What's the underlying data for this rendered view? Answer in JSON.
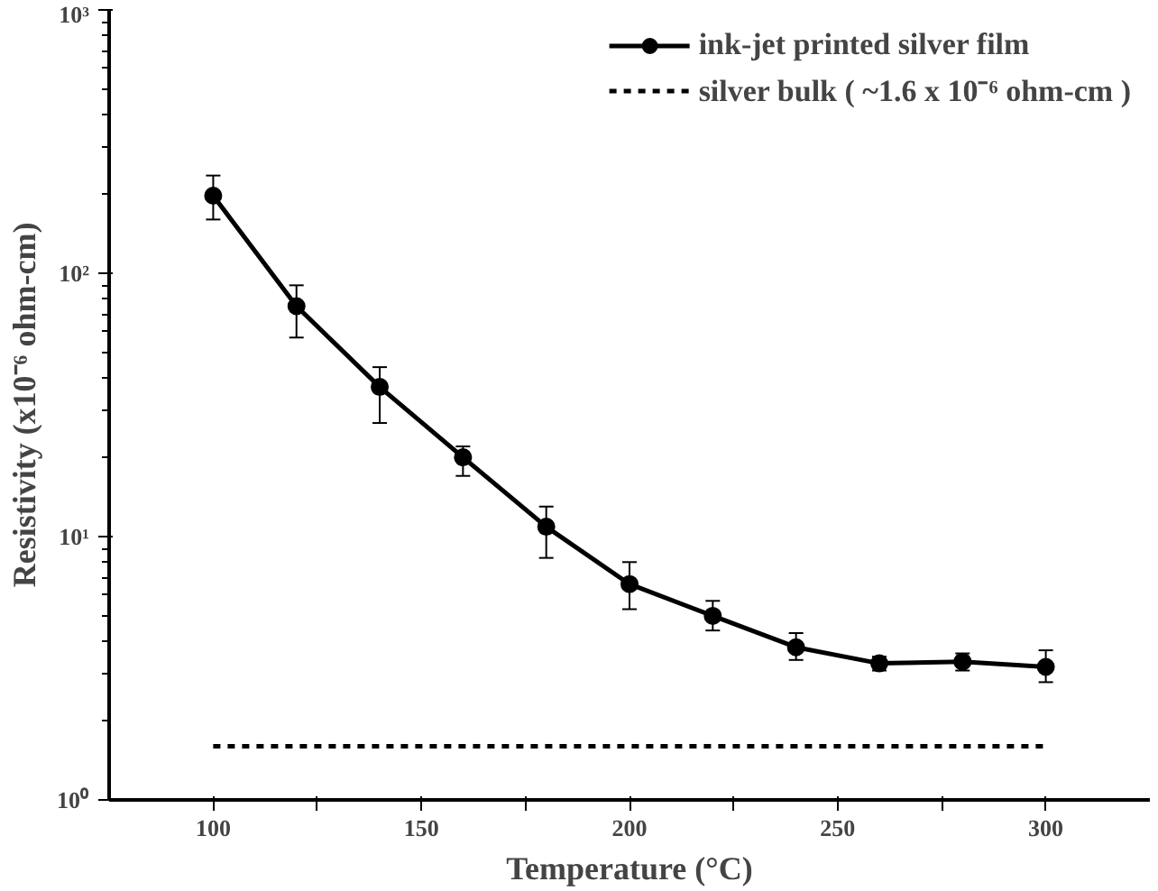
{
  "chart_data": {
    "type": "line",
    "xlabel": "Temperature (°C)",
    "ylabel": "Resistivity (x10⁻⁶ ohm-cm)",
    "log": "y",
    "xlim": [
      75,
      325
    ],
    "xticks": [
      100,
      {
        "value": 125,
        "label": null
      },
      150,
      {
        "value": 175,
        "label": null
      },
      200,
      {
        "value": 225,
        "label": null
      },
      250,
      {
        "value": 275,
        "label": null
      },
      300
    ],
    "ylim": [
      1,
      1000
    ],
    "yticks": [
      {
        "value": 1,
        "label": "10⁰"
      },
      {
        "value": 10,
        "label": "10¹"
      },
      {
        "value": 100,
        "label": "10²"
      },
      {
        "value": 1000,
        "label": "10³"
      }
    ],
    "x": [
      100,
      120,
      140,
      160,
      180,
      200,
      220,
      240,
      260,
      280,
      300
    ],
    "series": [
      {
        "name": "ink-jet printed silver film",
        "color": "#000000",
        "marker": "circle",
        "line_style": "solid",
        "values": [
          197,
          75,
          37,
          20,
          10.9,
          6.6,
          5.0,
          3.8,
          3.3,
          3.35,
          3.2
        ],
        "errors": [
          [
            160,
            235
          ],
          [
            57,
            90
          ],
          [
            27,
            44
          ],
          [
            17,
            22
          ],
          [
            8.3,
            13
          ],
          [
            5.3,
            8.0
          ],
          [
            4.4,
            5.7
          ],
          [
            3.4,
            4.3
          ],
          [
            3.1,
            3.5
          ],
          [
            3.1,
            3.6
          ],
          [
            2.8,
            3.7
          ]
        ]
      },
      {
        "name": "silver bulk ( ~1.6 x 10⁻⁶ ohm-cm )",
        "color": "#000000",
        "marker": "none",
        "line_style": "dashed",
        "x": [
          100,
          300
        ],
        "values": [
          1.6,
          1.6
        ]
      }
    ],
    "grid": false,
    "legend": "top right"
  }
}
